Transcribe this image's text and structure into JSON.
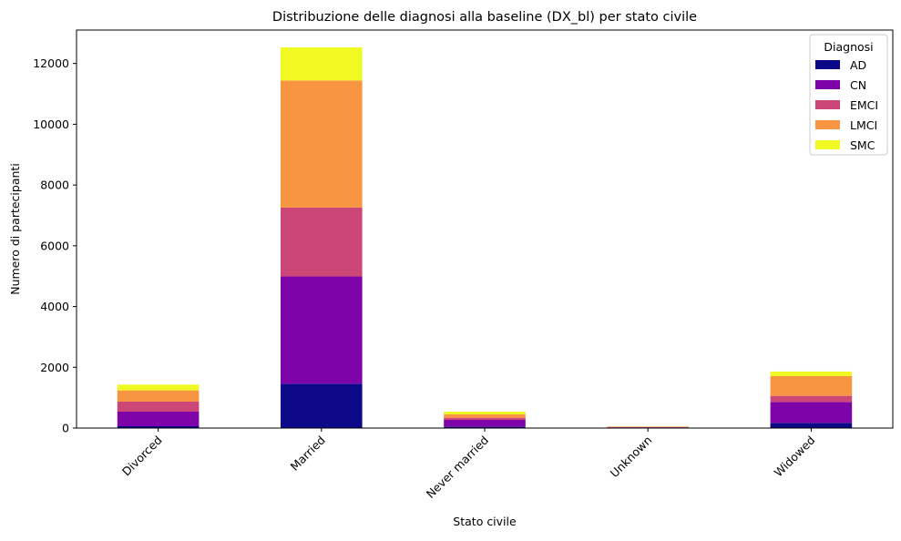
{
  "chart_data": {
    "type": "bar",
    "stacked": true,
    "title": "Distribuzione delle diagnosi alla baseline (DX_bl) per stato civile",
    "xlabel": "Stato civile",
    "ylabel": "Numero di partecipanti",
    "categories": [
      "Divorced",
      "Married",
      "Never married",
      "Unknown",
      "Widowed"
    ],
    "ylim": [
      0,
      13100
    ],
    "yticks": [
      0,
      2000,
      4000,
      6000,
      8000,
      10000,
      12000
    ],
    "ytick_labels": [
      "0",
      "2000",
      "4000",
      "6000",
      "8000",
      "10000",
      "12000"
    ],
    "grid": false,
    "legend": {
      "title": "Diagnosi",
      "placement": "top-right"
    },
    "series": [
      {
        "name": "AD",
        "color": "#0d0887",
        "values": [
          60,
          1460,
          40,
          5,
          170
        ]
      },
      {
        "name": "CN",
        "color": "#7e03a8",
        "values": [
          480,
          3530,
          230,
          20,
          690
        ]
      },
      {
        "name": "EMCI",
        "color": "#cc4778",
        "values": [
          330,
          2270,
          70,
          10,
          200
        ]
      },
      {
        "name": "LMCI",
        "color": "#f89540",
        "values": [
          370,
          4180,
          110,
          15,
          650
        ]
      },
      {
        "name": "SMC",
        "color": "#f0f921",
        "values": [
          190,
          1090,
          90,
          5,
          150
        ]
      }
    ]
  }
}
